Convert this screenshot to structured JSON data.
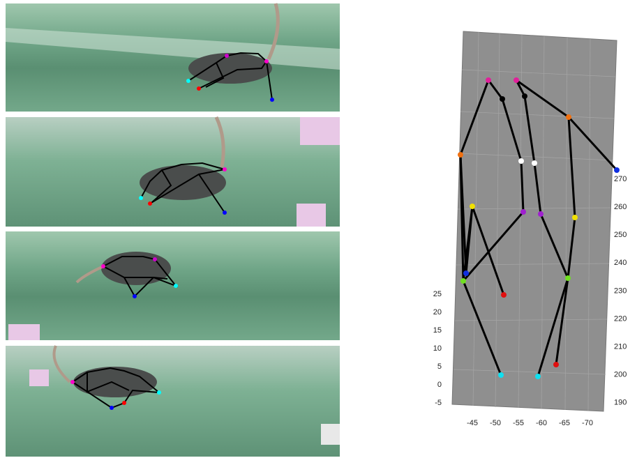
{
  "plot": {
    "z_ticks": [
      25,
      20,
      15,
      10,
      5,
      0,
      -5
    ],
    "y_ticks": [
      270,
      260,
      250,
      240,
      230,
      220,
      210,
      200,
      190
    ],
    "x_ticks": [
      -45,
      -50,
      -55,
      -60,
      -65,
      -70
    ]
  }
}
